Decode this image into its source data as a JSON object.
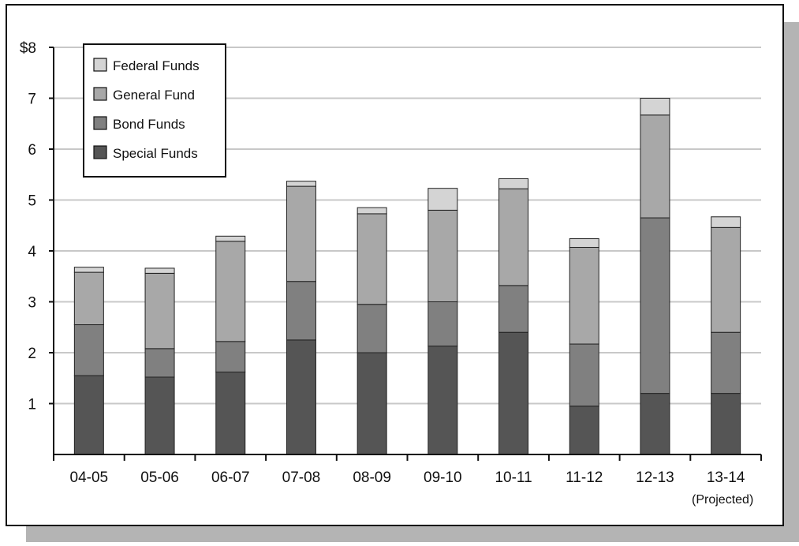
{
  "chart_data": {
    "type": "bar",
    "stacked": true,
    "categories": [
      "04-05",
      "05-06",
      "06-07",
      "07-08",
      "08-09",
      "09-10",
      "10-11",
      "11-12",
      "12-13",
      "13-14"
    ],
    "category_sublabels": [
      "",
      "",
      "",
      "",
      "",
      "",
      "",
      "",
      "",
      "(Projected)"
    ],
    "series": [
      {
        "name": "Special Funds",
        "color": "#555555",
        "values": [
          1.55,
          1.52,
          1.62,
          2.25,
          2.0,
          2.13,
          2.4,
          0.95,
          1.2,
          1.2
        ]
      },
      {
        "name": "Bond Funds",
        "color": "#808080",
        "values": [
          1.0,
          0.56,
          0.6,
          1.15,
          0.95,
          0.87,
          0.92,
          1.22,
          3.45,
          1.2
        ]
      },
      {
        "name": "General Fund",
        "color": "#a8a8a8",
        "values": [
          1.03,
          1.48,
          1.97,
          1.87,
          1.78,
          1.8,
          1.9,
          1.9,
          2.02,
          2.06
        ]
      },
      {
        "name": "Federal Funds",
        "color": "#d4d4d4",
        "values": [
          0.1,
          0.1,
          0.1,
          0.1,
          0.12,
          0.43,
          0.2,
          0.17,
          0.33,
          0.21
        ]
      }
    ],
    "y_ticks": [
      "1",
      "2",
      "3",
      "4",
      "5",
      "6",
      "7",
      "$8"
    ],
    "ylim": [
      0,
      8
    ],
    "grid": true,
    "legend_position": "top-left",
    "legend_order": [
      "Federal Funds",
      "General Fund",
      "Bond Funds",
      "Special Funds"
    ]
  }
}
